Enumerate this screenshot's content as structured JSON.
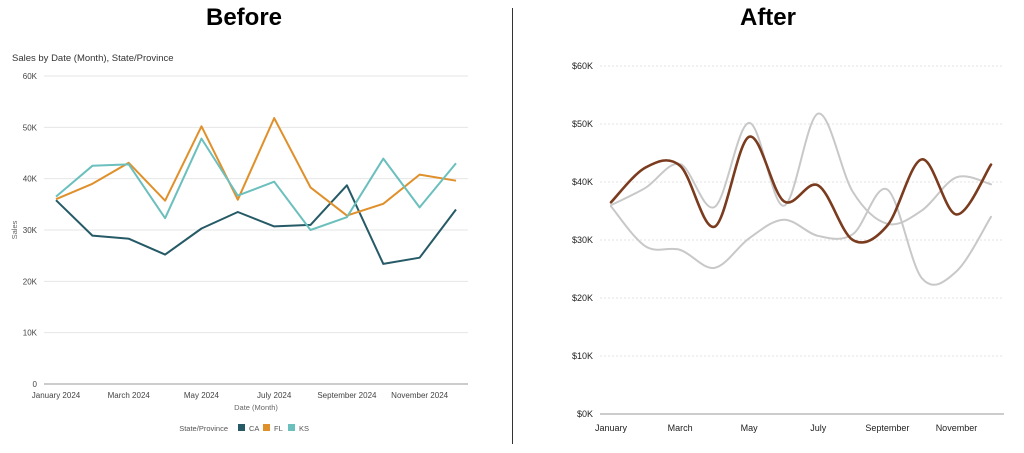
{
  "headings": {
    "before": "Before",
    "after": "After"
  },
  "chart_data": [
    {
      "type": "line",
      "title": "Sales by Date (Month), State/Province",
      "xlabel": "Date (Month)",
      "ylabel": "Sales",
      "categories": [
        "January 2024",
        "February 2024",
        "March 2024",
        "April 2024",
        "May 2024",
        "June 2024",
        "July 2024",
        "August 2024",
        "September 2024",
        "October 2024",
        "November 2024",
        "December 2024"
      ],
      "x_tick_labels": [
        "January 2024",
        "",
        "March 2024",
        "",
        "May 2024",
        "",
        "July 2024",
        "",
        "September 2024",
        "",
        "November 2024",
        ""
      ],
      "ylim": [
        0,
        60000
      ],
      "y_ticks": [
        0,
        10000,
        20000,
        30000,
        40000,
        50000,
        60000
      ],
      "y_tick_labels": [
        "0",
        "10K",
        "20K",
        "30K",
        "40K",
        "50K",
        "60K"
      ],
      "grid": true,
      "legend": {
        "title": "State/Province",
        "position": "bottom"
      },
      "series": [
        {
          "name": "CA",
          "color": "#255a66",
          "values": [
            35800,
            28900,
            28300,
            25200,
            30300,
            33500,
            30700,
            31000,
            38700,
            23400,
            24600,
            34000
          ]
        },
        {
          "name": "FL",
          "color": "#e0902a",
          "values": [
            36000,
            39000,
            43100,
            35700,
            50200,
            35900,
            51800,
            38300,
            32800,
            35100,
            40800,
            39600
          ]
        },
        {
          "name": "KS",
          "color": "#6bbfbd",
          "values": [
            36500,
            42500,
            42800,
            32300,
            47800,
            36700,
            39400,
            30000,
            32500,
            43900,
            34400,
            43000
          ]
        }
      ]
    },
    {
      "type": "line",
      "title": "",
      "xlabel": "",
      "ylabel": "",
      "smooth": true,
      "categories": [
        "January",
        "February",
        "March",
        "April",
        "May",
        "June",
        "July",
        "August",
        "September",
        "October",
        "November",
        "December"
      ],
      "x_tick_labels": [
        "January",
        "",
        "March",
        "",
        "May",
        "",
        "July",
        "",
        "September",
        "",
        "November",
        ""
      ],
      "ylim": [
        0,
        60000
      ],
      "y_ticks": [
        0,
        10000,
        20000,
        30000,
        40000,
        50000,
        60000
      ],
      "y_tick_labels": [
        "$0K",
        "$10K",
        "$20K",
        "$30K",
        "$40K",
        "$50K",
        "$60K"
      ],
      "grid": true,
      "series": [
        {
          "color": "#c8c8c8",
          "values": [
            35800,
            28900,
            28300,
            25200,
            30300,
            33500,
            30700,
            31000,
            38700,
            23400,
            24600,
            34000
          ]
        },
        {
          "color": "#c8c8c8",
          "values": [
            36000,
            39000,
            43100,
            35700,
            50200,
            35900,
            51800,
            38300,
            32800,
            35100,
            40800,
            39600
          ]
        },
        {
          "color": "#7a3b1e",
          "values": [
            36500,
            42500,
            42800,
            32300,
            47800,
            36700,
            39400,
            30000,
            32500,
            43900,
            34400,
            43000
          ],
          "highlight": true
        }
      ]
    }
  ]
}
